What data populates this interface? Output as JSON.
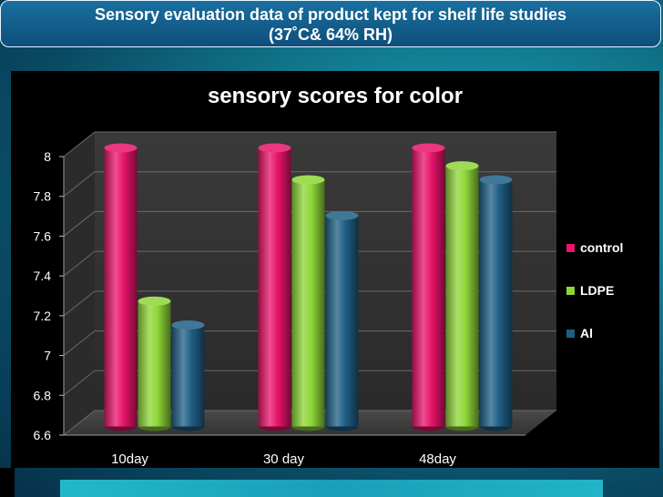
{
  "slide": {
    "title_line1": "Sensory evaluation data of product kept for shelf life studies",
    "title_line2": "(37˚C& 64% RH)"
  },
  "colors": {
    "control": "#e8136a",
    "LDPE": "#8ed637",
    "Al": "#1f5f86"
  },
  "chart_data": {
    "type": "bar",
    "title": "sensory scores for color",
    "categories": [
      "10day",
      "30 day",
      "48day"
    ],
    "series": [
      {
        "name": "control",
        "values": [
          8.0,
          8.0,
          8.0
        ]
      },
      {
        "name": "LDPE",
        "values": [
          7.23,
          7.84,
          7.91
        ]
      },
      {
        "name": "Al",
        "values": [
          7.11,
          7.66,
          7.84
        ]
      }
    ],
    "ylim": [
      6.6,
      8.0
    ],
    "yticks": [
      "8",
      "7.8",
      "7.6",
      "7.4",
      "7.2",
      "7",
      "6.8",
      "6.6"
    ],
    "ytick_values": [
      8.0,
      7.8,
      7.6,
      7.4,
      7.2,
      7.0,
      6.8,
      6.6
    ],
    "grid": true,
    "legend_position": "right",
    "style": "3d-cylinder"
  }
}
